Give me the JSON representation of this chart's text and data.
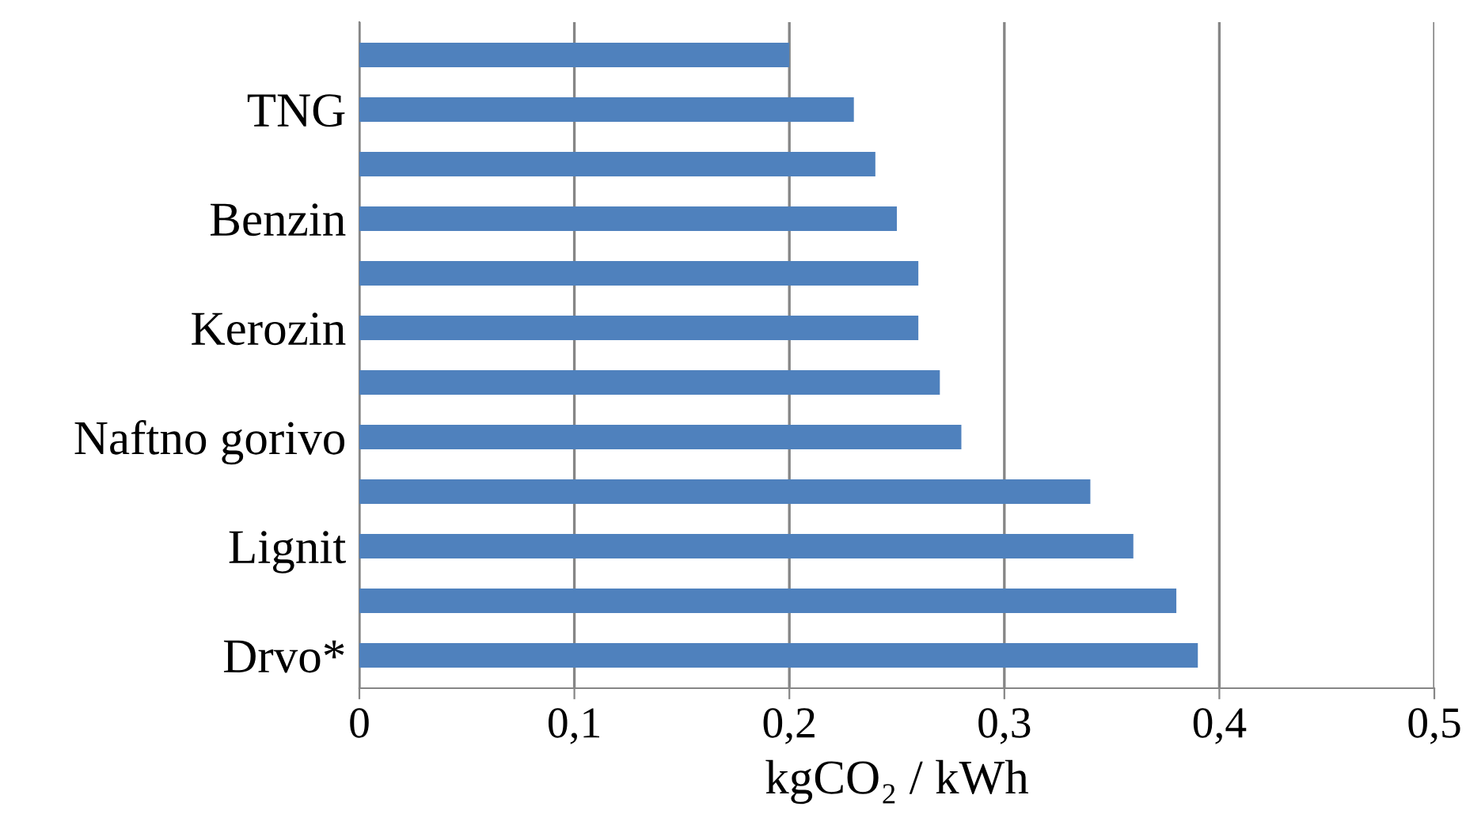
{
  "chart_data": {
    "type": "bar",
    "orientation": "horizontal",
    "xlabel": "kgCO₂ / kWh",
    "categories": [
      null,
      "TNG",
      null,
      "Benzin",
      null,
      "Kerozin",
      null,
      "Naftno gorivo",
      null,
      "Lignit",
      null,
      "Drvo*"
    ],
    "values": [
      0.2,
      0.23,
      0.24,
      0.25,
      0.26,
      0.26,
      0.27,
      0.28,
      0.34,
      0.36,
      0.38,
      0.39
    ],
    "color": "#4f81bd",
    "xlim": [
      0,
      0.5
    ],
    "xticks": [
      0,
      {
        "value": 0.1,
        "label": "0,1"
      },
      {
        "value": 0.2,
        "label": "0,2"
      },
      {
        "value": 0.3,
        "label": "0,3"
      },
      {
        "value": 0.4,
        "label": "0,4"
      },
      {
        "value": 0.5,
        "label": "0,5"
      }
    ],
    "grid": "x"
  }
}
